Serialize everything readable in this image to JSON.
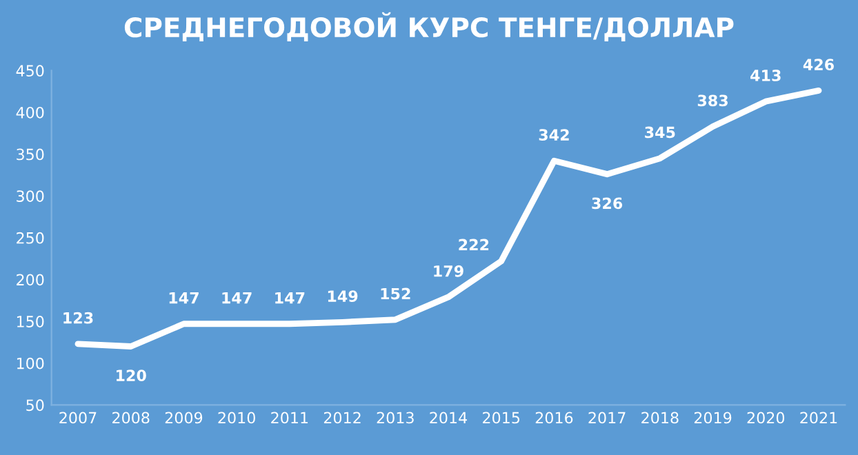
{
  "chart_data": {
    "type": "line",
    "title": "СРЕДНЕГОДОВОЙ КУРС ТЕНГЕ/ДОЛЛАР",
    "categories": [
      "2007",
      "2008",
      "2009",
      "2010",
      "2011",
      "2012",
      "2013",
      "2014",
      "2015",
      "2016",
      "2017",
      "2018",
      "2019",
      "2020",
      "2021"
    ],
    "series": [
      {
        "color": "#ffffff",
        "values": [
          123,
          120,
          147,
          147,
          147,
          149,
          152,
          179,
          222,
          342,
          326,
          345,
          383,
          413,
          426
        ]
      }
    ],
    "ylim": [
      50,
      450
    ],
    "yticks": [
      50,
      100,
      150,
      200,
      250,
      300,
      350,
      400,
      450
    ],
    "data_labels": true,
    "grid": false,
    "legend": false,
    "marker": "none",
    "line_style": "solid"
  }
}
